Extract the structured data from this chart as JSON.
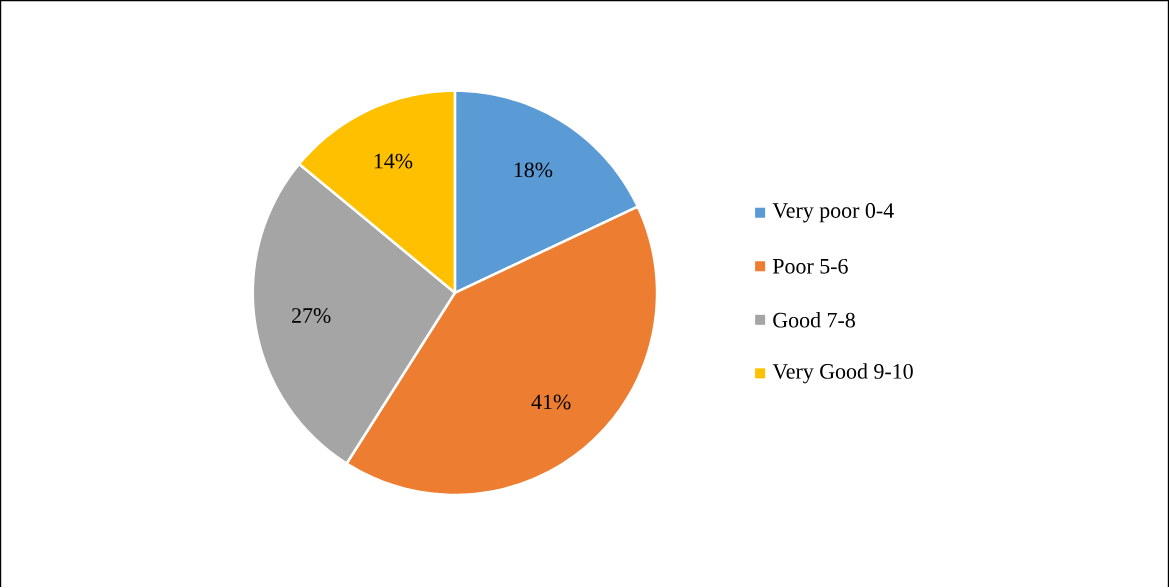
{
  "chart_data": {
    "type": "pie",
    "categories": [
      "Very poor 0-4",
      "Poor 5-6",
      "Good 7-8",
      "Very Good 9-10"
    ],
    "values": [
      18,
      41,
      27,
      14
    ],
    "colors": [
      "#5b9bd5",
      "#ed7d31",
      "#a5a5a5",
      "#ffc000"
    ],
    "value_labels": [
      "18%",
      "41%",
      "27%",
      "14%"
    ],
    "legend": "right"
  }
}
